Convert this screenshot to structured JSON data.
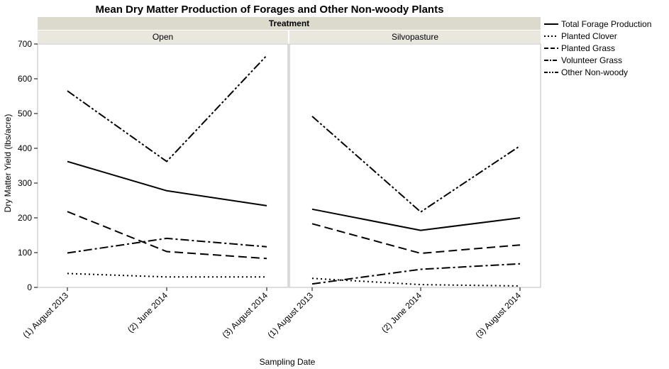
{
  "chart_data": {
    "type": "line",
    "title": "Mean Dry Matter Production of Forages and Other Non-woody Plants",
    "group_header": "Treatment",
    "panels": [
      "Open",
      "Silvopasture"
    ],
    "categories": [
      "(1) August 2013",
      "(2) June 2014",
      "(3) August 2014"
    ],
    "xlabel": "Sampling Date",
    "ylabel": "Dry Matter Yield (lbs/acre)",
    "ylim": [
      0,
      700
    ],
    "yticks": [
      0,
      100,
      200,
      300,
      400,
      500,
      600,
      700
    ],
    "grid": false,
    "legend_position": "right",
    "series": [
      {
        "name": "Total Forage Production",
        "dash": "solid",
        "values": {
          "Open": [
            362,
            278,
            235
          ],
          "Silvopasture": [
            225,
            164,
            200
          ]
        }
      },
      {
        "name": "Planted Clover",
        "dash": "dotted",
        "values": {
          "Open": [
            40,
            30,
            30
          ],
          "Silvopasture": [
            26,
            8,
            4
          ]
        }
      },
      {
        "name": "Planted Grass",
        "dash": "dashed",
        "values": {
          "Open": [
            218,
            103,
            83
          ],
          "Silvopasture": [
            183,
            98,
            122
          ]
        }
      },
      {
        "name": "Volunteer Grass",
        "dash": "dashdot",
        "values": {
          "Open": [
            99,
            141,
            117
          ],
          "Silvopasture": [
            10,
            52,
            68
          ]
        }
      },
      {
        "name": "Other Non-woody",
        "dash": "dashdotdot",
        "values": {
          "Open": [
            565,
            362,
            667
          ],
          "Silvopasture": [
            492,
            217,
            407
          ]
        }
      }
    ]
  }
}
